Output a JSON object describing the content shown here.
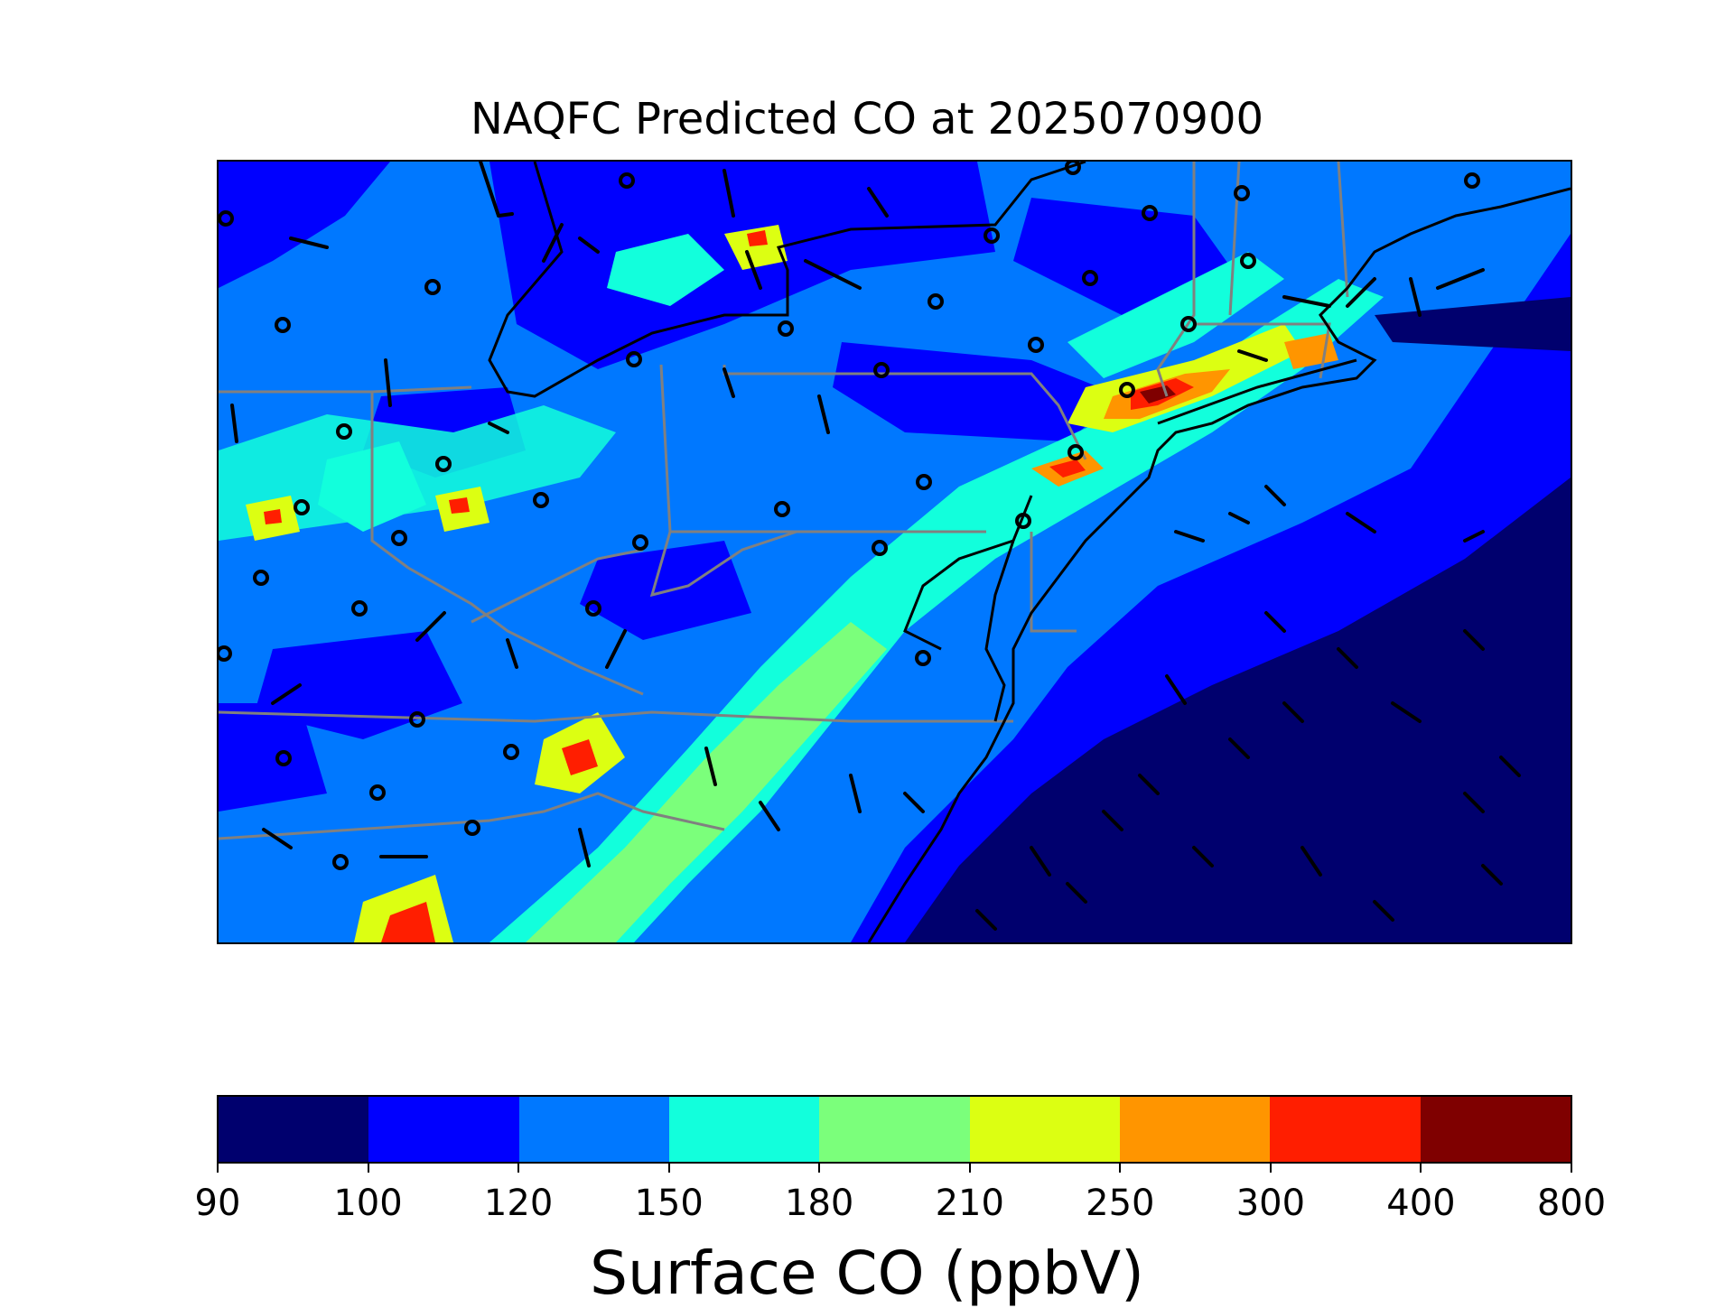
{
  "title": "NAQFC Predicted CO at 2025070900",
  "colorbar": {
    "label": "Surface CO (ppbV)",
    "levels": [
      "90",
      "100",
      "120",
      "150",
      "180",
      "210",
      "250",
      "300",
      "400",
      "800"
    ],
    "colors": [
      "#00006e",
      "#0000ff",
      "#0078ff",
      "#12ffdc",
      "#7bff7b",
      "#dcff12",
      "#ff9500",
      "#ff1e00",
      "#7f0000"
    ]
  },
  "map": {
    "variable": "Surface CO",
    "units": "ppbV",
    "region": "Mid-Atlantic / Northeast United States",
    "overlays": [
      "state-boundaries",
      "coastline",
      "wind-barbs",
      "calm-wind-circles"
    ]
  }
}
